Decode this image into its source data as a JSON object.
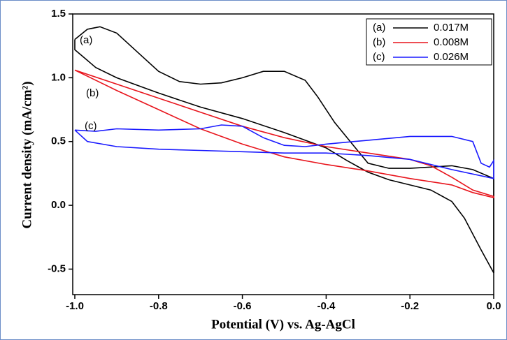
{
  "chart_data": {
    "type": "line",
    "x_label": "Potential (V) vs. Ag-AgCl",
    "y_label": "Current density (mA/cm²)",
    "xlim": [
      -1.005,
      0.0
    ],
    "ylim": [
      -0.7,
      1.5
    ],
    "xticks": [
      {
        "value": -1.0,
        "label": "-1.0"
      },
      -0.8,
      -0.6,
      -0.4,
      -0.2,
      {
        "value": 0,
        "label": "0.0"
      }
    ],
    "yticks": [
      -0.5,
      {
        "value": 0,
        "label": "0.0"
      },
      0.5,
      {
        "value": 1,
        "label": "1.0"
      },
      1.5
    ],
    "series": [
      {
        "name": "0.017M",
        "label": "(a)",
        "color": "#000000",
        "x": [
          -1.0,
          -0.97,
          -0.94,
          -0.9,
          -0.85,
          -0.8,
          -0.75,
          -0.7,
          -0.65,
          -0.6,
          -0.55,
          -0.5,
          -0.45,
          -0.42,
          -0.38,
          -0.33,
          -0.3,
          -0.25,
          -0.2,
          -0.15,
          -0.1,
          -0.05,
          0.0,
          0.0,
          -0.03,
          -0.07,
          -0.1,
          -0.15,
          -0.2,
          -0.25,
          -0.3,
          -0.35,
          -0.4,
          -0.5,
          -0.6,
          -0.7,
          -0.8,
          -0.9,
          -0.95,
          -1.0,
          -1.0
        ],
        "values": [
          1.3,
          1.38,
          1.4,
          1.35,
          1.2,
          1.05,
          0.97,
          0.95,
          0.96,
          1.0,
          1.05,
          1.05,
          0.98,
          0.85,
          0.65,
          0.45,
          0.33,
          0.29,
          0.29,
          0.3,
          0.31,
          0.28,
          0.21,
          -0.53,
          -0.35,
          -0.1,
          0.03,
          0.12,
          0.16,
          0.2,
          0.26,
          0.35,
          0.45,
          0.57,
          0.68,
          0.77,
          0.88,
          1.0,
          1.08,
          1.22,
          1.3
        ]
      },
      {
        "name": "0.008M",
        "label": "(b)",
        "color": "#e8141c",
        "x": [
          -1.0,
          -0.9,
          -0.8,
          -0.7,
          -0.6,
          -0.5,
          -0.4,
          -0.3,
          -0.2,
          -0.15,
          -0.1,
          -0.05,
          0.0,
          0.0,
          -0.05,
          -0.1,
          -0.2,
          -0.3,
          -0.4,
          -0.5,
          -0.6,
          -0.7,
          -0.8,
          -0.9,
          -1.0
        ],
        "values": [
          1.06,
          0.95,
          0.84,
          0.73,
          0.62,
          0.53,
          0.46,
          0.41,
          0.36,
          0.31,
          0.22,
          0.12,
          0.07,
          0.06,
          0.1,
          0.16,
          0.21,
          0.27,
          0.32,
          0.38,
          0.48,
          0.6,
          0.75,
          0.9,
          1.06
        ]
      },
      {
        "name": "0.026M",
        "label": "(c)",
        "color": "#1a1aff",
        "x": [
          -1.0,
          -0.95,
          -0.9,
          -0.8,
          -0.7,
          -0.65,
          -0.6,
          -0.55,
          -0.5,
          -0.45,
          -0.4,
          -0.3,
          -0.2,
          -0.1,
          -0.05,
          -0.03,
          -0.01,
          0.0,
          0.0,
          -0.1,
          -0.2,
          -0.3,
          -0.4,
          -0.5,
          -0.6,
          -0.7,
          -0.8,
          -0.9,
          -0.97,
          -1.0
        ],
        "values": [
          0.59,
          0.58,
          0.6,
          0.59,
          0.6,
          0.63,
          0.62,
          0.53,
          0.47,
          0.46,
          0.48,
          0.51,
          0.54,
          0.54,
          0.5,
          0.33,
          0.3,
          0.35,
          0.21,
          0.28,
          0.36,
          0.39,
          0.41,
          0.41,
          0.42,
          0.43,
          0.44,
          0.46,
          0.5,
          0.59
        ]
      }
    ]
  }
}
